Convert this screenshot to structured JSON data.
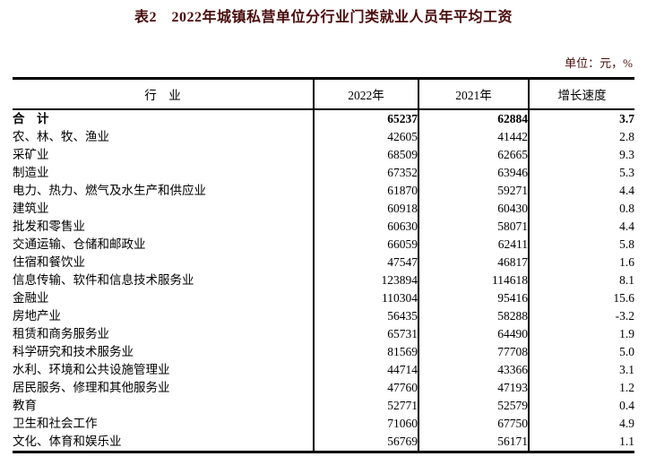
{
  "title": "表2　2022年城镇私营单位分行业门类就业人员年平均工资",
  "unit_note": "单位：元，%",
  "colors": {
    "heading_text": "#4a0d0d",
    "body_text": "#000000",
    "border": "#000000",
    "background": "#ffffff"
  },
  "table": {
    "columns": [
      "行　业",
      "2022年",
      "2021年",
      "增长速度"
    ],
    "rows": [
      {
        "industry": "合　计",
        "y2022": "65237",
        "y2021": "62884",
        "growth": "3.7",
        "bold": true
      },
      {
        "industry": "农、林、牧、渔业",
        "y2022": "42605",
        "y2021": "41442",
        "growth": "2.8",
        "bold": false
      },
      {
        "industry": "采矿业",
        "y2022": "68509",
        "y2021": "62665",
        "growth": "9.3",
        "bold": false
      },
      {
        "industry": "制造业",
        "y2022": "67352",
        "y2021": "63946",
        "growth": "5.3",
        "bold": false
      },
      {
        "industry": "电力、热力、燃气及水生产和供应业",
        "y2022": "61870",
        "y2021": "59271",
        "growth": "4.4",
        "bold": false
      },
      {
        "industry": "建筑业",
        "y2022": "60918",
        "y2021": "60430",
        "growth": "0.8",
        "bold": false
      },
      {
        "industry": "批发和零售业",
        "y2022": "60630",
        "y2021": "58071",
        "growth": "4.4",
        "bold": false
      },
      {
        "industry": "交通运输、仓储和邮政业",
        "y2022": "66059",
        "y2021": "62411",
        "growth": "5.8",
        "bold": false
      },
      {
        "industry": "住宿和餐饮业",
        "y2022": "47547",
        "y2021": "46817",
        "growth": "1.6",
        "bold": false
      },
      {
        "industry": "信息传输、软件和信息技术服务业",
        "y2022": "123894",
        "y2021": "114618",
        "growth": "8.1",
        "bold": false
      },
      {
        "industry": "金融业",
        "y2022": "110304",
        "y2021": "95416",
        "growth": "15.6",
        "bold": false
      },
      {
        "industry": "房地产业",
        "y2022": "56435",
        "y2021": "58288",
        "growth": "-3.2",
        "bold": false
      },
      {
        "industry": "租赁和商务服务业",
        "y2022": "65731",
        "y2021": "64490",
        "growth": "1.9",
        "bold": false
      },
      {
        "industry": "科学研究和技术服务业",
        "y2022": "81569",
        "y2021": "77708",
        "growth": "5.0",
        "bold": false
      },
      {
        "industry": "水利、环境和公共设施管理业",
        "y2022": "44714",
        "y2021": "43366",
        "growth": "3.1",
        "bold": false
      },
      {
        "industry": "居民服务、修理和其他服务业",
        "y2022": "47760",
        "y2021": "47193",
        "growth": "1.2",
        "bold": false
      },
      {
        "industry": "教育",
        "y2022": "52771",
        "y2021": "52579",
        "growth": "0.4",
        "bold": false
      },
      {
        "industry": "卫生和社会工作",
        "y2022": "71060",
        "y2021": "67750",
        "growth": "4.9",
        "bold": false
      },
      {
        "industry": "文化、体育和娱乐业",
        "y2022": "56769",
        "y2021": "56171",
        "growth": "1.1",
        "bold": false
      }
    ]
  }
}
